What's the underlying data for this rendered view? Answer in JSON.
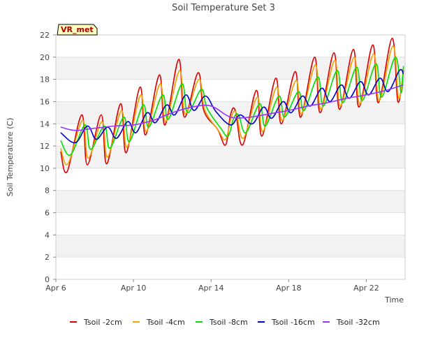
{
  "chart_data": {
    "type": "line",
    "title": "Soil Temperature Set 3",
    "badge": "VR_met",
    "xlabel": "Time",
    "ylabel": "Soil Temperature (C)",
    "xlim": [
      "2024-04-06",
      "2024-04-24"
    ],
    "ylim": [
      0,
      22
    ],
    "yticks": [
      0,
      2,
      4,
      6,
      8,
      10,
      12,
      14,
      16,
      18,
      20,
      22
    ],
    "xticks": [
      {
        "date": "2024-04-06",
        "label": "Apr 6"
      },
      {
        "date": "2024-04-10",
        "label": "Apr 10"
      },
      {
        "date": "2024-04-14",
        "label": "Apr 14"
      },
      {
        "date": "2024-04-18",
        "label": "Apr 18"
      },
      {
        "date": "2024-04-22",
        "label": "Apr 22"
      }
    ],
    "grid": "horizontal bands",
    "legend_position": "bottom",
    "series": [
      {
        "name": "Tsoil -2cm",
        "color": "#dd0000",
        "x": [
          "2024-04-06T06:00",
          "2024-04-06T14:00",
          "2024-04-07T08:00",
          "2024-04-07T15:00",
          "2024-04-08T08:00",
          "2024-04-08T15:00",
          "2024-04-09T08:00",
          "2024-04-09T15:00",
          "2024-04-10T08:00",
          "2024-04-10T15:00",
          "2024-04-11T08:00",
          "2024-04-11T15:00",
          "2024-04-12T08:00",
          "2024-04-12T15:00",
          "2024-04-13T08:00",
          "2024-04-13T15:00",
          "2024-04-14T08:00",
          "2024-04-14T18:00",
          "2024-04-15T00:00",
          "2024-04-15T06:00",
          "2024-04-15T15:00",
          "2024-04-16T08:00",
          "2024-04-16T15:00",
          "2024-04-17T08:00",
          "2024-04-17T15:00",
          "2024-04-18T08:00",
          "2024-04-18T15:00",
          "2024-04-19T08:00",
          "2024-04-19T15:00",
          "2024-04-20T08:00",
          "2024-04-20T15:00",
          "2024-04-21T08:00",
          "2024-04-21T15:00",
          "2024-04-22T08:00",
          "2024-04-22T15:00",
          "2024-04-23T08:00",
          "2024-04-23T15:00",
          "2024-04-23T22:00"
        ],
        "values": [
          11.5,
          9.7,
          14.8,
          10.3,
          14.8,
          10.4,
          15.8,
          11.4,
          17.3,
          13.0,
          18.4,
          13.9,
          19.8,
          14.6,
          18.6,
          15.2,
          13.5,
          12.1,
          14.8,
          15.2,
          12.1,
          17.0,
          12.9,
          18.1,
          14.0,
          18.7,
          14.6,
          20.0,
          15.0,
          20.4,
          15.3,
          20.7,
          15.5,
          21.1,
          15.9,
          21.7,
          16.0,
          18.8
        ]
      },
      {
        "name": "Tsoil -4cm",
        "color": "#f0a000",
        "x": [
          "2024-04-06T06:00",
          "2024-04-06T15:00",
          "2024-04-07T09:00",
          "2024-04-07T16:00",
          "2024-04-08T09:00",
          "2024-04-08T16:00",
          "2024-04-09T09:00",
          "2024-04-09T16:00",
          "2024-04-10T09:00",
          "2024-04-10T16:00",
          "2024-04-11T09:00",
          "2024-04-11T16:00",
          "2024-04-12T09:00",
          "2024-04-12T16:00",
          "2024-04-13T09:00",
          "2024-04-13T16:00",
          "2024-04-14T09:00",
          "2024-04-14T18:00",
          "2024-04-15T01:00",
          "2024-04-15T07:00",
          "2024-04-15T16:00",
          "2024-04-16T09:00",
          "2024-04-16T16:00",
          "2024-04-17T09:00",
          "2024-04-17T16:00",
          "2024-04-18T09:00",
          "2024-04-18T16:00",
          "2024-04-19T09:00",
          "2024-04-19T16:00",
          "2024-04-20T09:00",
          "2024-04-20T16:00",
          "2024-04-21T09:00",
          "2024-04-21T16:00",
          "2024-04-22T09:00",
          "2024-04-22T16:00",
          "2024-04-23T09:00",
          "2024-04-23T16:00",
          "2024-04-23T22:00"
        ],
        "values": [
          11.8,
          10.4,
          14.3,
          10.9,
          14.2,
          11.0,
          15.2,
          11.9,
          16.6,
          13.3,
          17.6,
          14.2,
          18.8,
          14.9,
          18.0,
          15.3,
          13.4,
          12.6,
          14.6,
          15.0,
          12.7,
          16.4,
          13.3,
          17.3,
          14.3,
          17.9,
          14.9,
          19.3,
          15.3,
          19.7,
          15.6,
          20.0,
          15.8,
          20.3,
          16.1,
          21.0,
          16.3,
          19.0
        ]
      },
      {
        "name": "Tsoil -8cm",
        "color": "#00e000",
        "x": [
          "2024-04-06T06:00",
          "2024-04-06T18:00",
          "2024-04-07T12:00",
          "2024-04-07T19:00",
          "2024-04-08T12:00",
          "2024-04-08T19:00",
          "2024-04-09T12:00",
          "2024-04-09T19:00",
          "2024-04-10T12:00",
          "2024-04-10T19:00",
          "2024-04-11T12:00",
          "2024-04-11T19:00",
          "2024-04-12T12:00",
          "2024-04-12T19:00",
          "2024-04-13T12:00",
          "2024-04-13T19:00",
          "2024-04-14T12:00",
          "2024-04-14T21:00",
          "2024-04-15T04:00",
          "2024-04-15T10:00",
          "2024-04-15T19:00",
          "2024-04-16T12:00",
          "2024-04-16T19:00",
          "2024-04-17T12:00",
          "2024-04-17T19:00",
          "2024-04-18T12:00",
          "2024-04-18T19:00",
          "2024-04-19T12:00",
          "2024-04-19T19:00",
          "2024-04-20T12:00",
          "2024-04-20T19:00",
          "2024-04-21T12:00",
          "2024-04-21T19:00",
          "2024-04-22T12:00",
          "2024-04-22T19:00",
          "2024-04-23T12:00",
          "2024-04-23T19:00",
          "2024-04-23T22:00"
        ],
        "values": [
          12.5,
          11.2,
          13.9,
          11.7,
          13.8,
          11.8,
          14.6,
          12.4,
          15.7,
          13.7,
          16.6,
          14.4,
          17.6,
          15.0,
          17.1,
          15.4,
          13.6,
          12.9,
          14.5,
          14.8,
          13.2,
          15.8,
          13.8,
          16.5,
          14.6,
          16.9,
          15.2,
          18.2,
          15.6,
          18.8,
          15.9,
          19.1,
          16.1,
          19.4,
          16.4,
          20.0,
          16.8,
          19.2
        ]
      },
      {
        "name": "Tsoil -16cm",
        "color": "#0000cc",
        "x": [
          "2024-04-06T06:00",
          "2024-04-07T00:00",
          "2024-04-07T15:00",
          "2024-04-08T02:00",
          "2024-04-08T16:00",
          "2024-04-09T03:00",
          "2024-04-09T17:00",
          "2024-04-10T03:00",
          "2024-04-10T17:00",
          "2024-04-11T03:00",
          "2024-04-11T17:00",
          "2024-04-12T03:00",
          "2024-04-12T17:00",
          "2024-04-13T03:00",
          "2024-04-13T17:00",
          "2024-04-14T06:00",
          "2024-04-15T00:00",
          "2024-04-15T12:00",
          "2024-04-16T03:00",
          "2024-04-16T17:00",
          "2024-04-17T03:00",
          "2024-04-17T17:00",
          "2024-04-18T03:00",
          "2024-04-18T17:00",
          "2024-04-19T03:00",
          "2024-04-19T17:00",
          "2024-04-20T03:00",
          "2024-04-20T17:00",
          "2024-04-21T03:00",
          "2024-04-21T17:00",
          "2024-04-22T03:00",
          "2024-04-22T17:00",
          "2024-04-23T03:00",
          "2024-04-23T17:00",
          "2024-04-23T22:00"
        ],
        "values": [
          13.2,
          12.3,
          13.8,
          12.6,
          13.7,
          12.7,
          14.2,
          13.2,
          15.0,
          14.1,
          15.7,
          14.8,
          16.6,
          15.2,
          16.5,
          15.1,
          13.9,
          14.8,
          14.0,
          15.5,
          14.5,
          16.0,
          15.0,
          16.5,
          15.6,
          17.2,
          16.0,
          17.5,
          16.3,
          17.8,
          16.6,
          18.1,
          16.9,
          18.8,
          18.5
        ]
      },
      {
        "name": "Tsoil -32cm",
        "color": "#9933ff",
        "x": [
          "2024-04-06T06:00",
          "2024-04-07T00:00",
          "2024-04-08T00:00",
          "2024-04-09T00:00",
          "2024-04-10T00:00",
          "2024-04-11T00:00",
          "2024-04-12T00:00",
          "2024-04-13T00:00",
          "2024-04-14T00:00",
          "2024-04-15T00:00",
          "2024-04-16T00:00",
          "2024-04-17T00:00",
          "2024-04-18T00:00",
          "2024-04-19T00:00",
          "2024-04-20T00:00",
          "2024-04-21T00:00",
          "2024-04-22T00:00",
          "2024-04-23T00:00",
          "2024-04-23T22:00"
        ],
        "values": [
          13.7,
          13.4,
          13.6,
          13.8,
          13.9,
          14.3,
          15.0,
          15.5,
          15.6,
          14.6,
          14.6,
          14.9,
          15.2,
          15.6,
          15.9,
          16.3,
          16.6,
          17.0,
          17.5
        ]
      }
    ]
  }
}
